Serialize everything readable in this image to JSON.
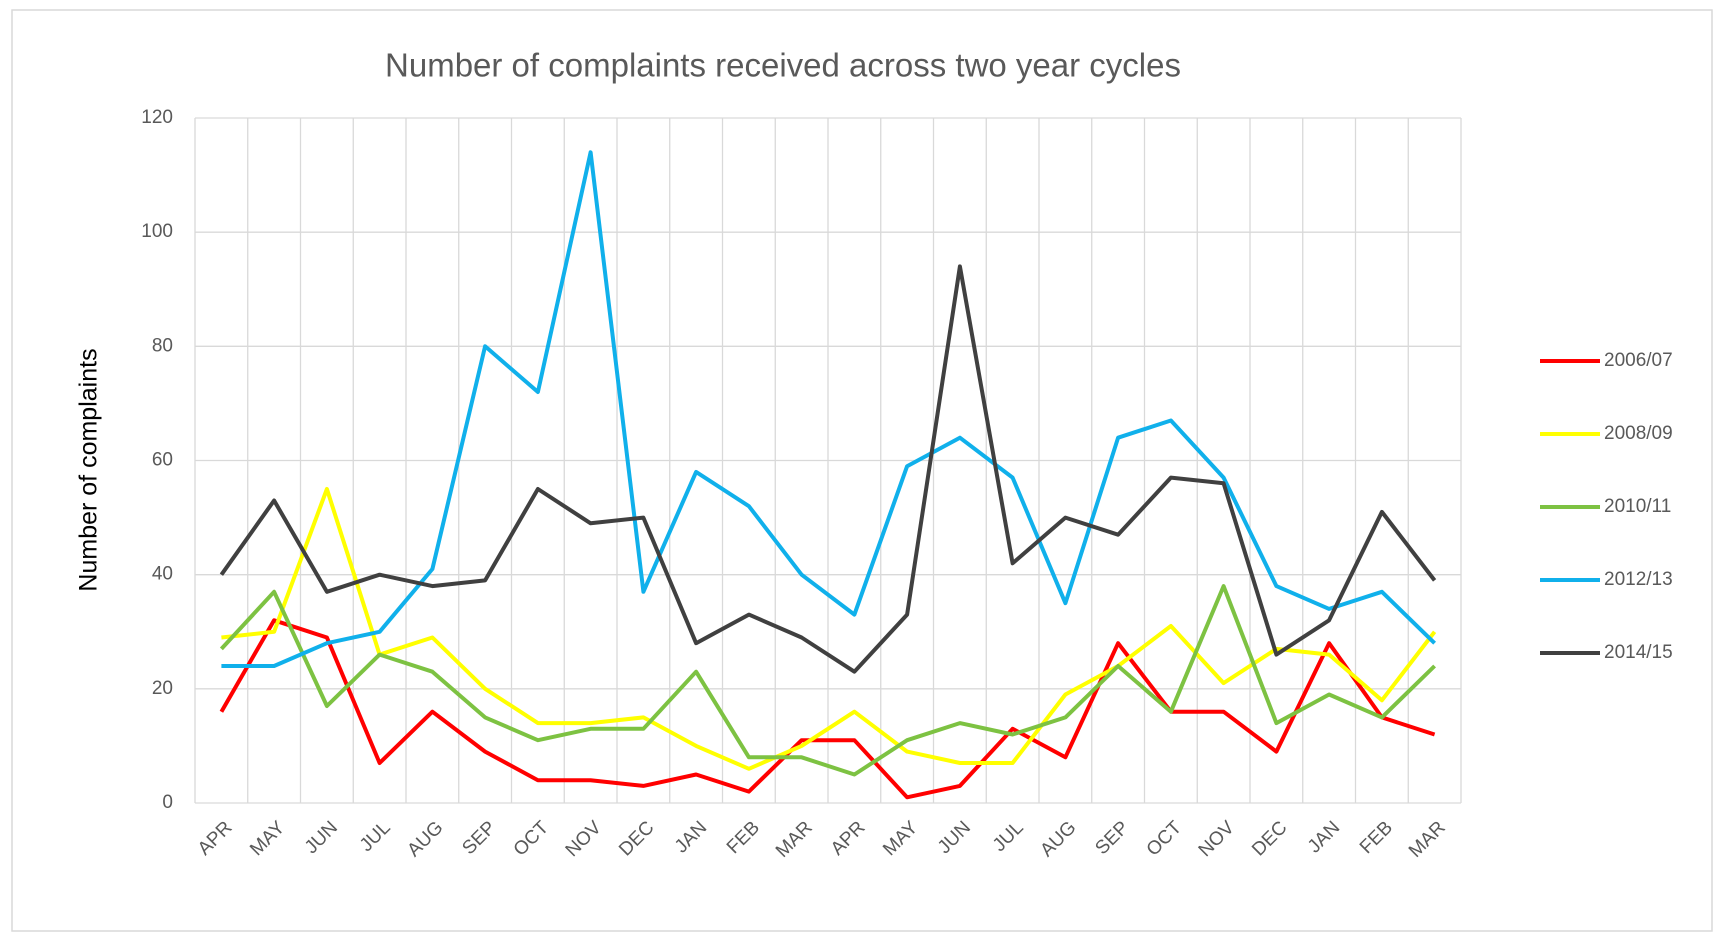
{
  "chart_data": {
    "type": "line",
    "title": "Number of complaints received across two year cycles",
    "y_label": "Number of complaints",
    "categories": [
      "APR",
      "MAY",
      "JUN",
      "JUL",
      "AUG",
      "SEP",
      "OCT",
      "NOV",
      "DEC",
      "JAN",
      "FEB",
      "MAR",
      "APR",
      "MAY",
      "JUN",
      "JUL",
      "AUG",
      "SEP",
      "OCT",
      "NOV",
      "DEC",
      "JAN",
      "FEB",
      "MAR"
    ],
    "series": [
      {
        "name": "2006/07",
        "color": "#ff0000",
        "values": [
          16,
          32,
          29,
          7,
          16,
          9,
          4,
          4,
          3,
          5,
          2,
          11,
          11,
          1,
          3,
          13,
          8,
          28,
          16,
          16,
          9,
          28,
          15,
          12
        ]
      },
      {
        "name": "2008/09",
        "color": "#ffff00",
        "values": [
          29,
          30,
          55,
          26,
          29,
          20,
          14,
          14,
          15,
          10,
          6,
          10,
          16,
          9,
          7,
          7,
          19,
          24,
          31,
          21,
          27,
          26,
          18,
          30
        ]
      },
      {
        "name": "2010/11",
        "color": "#7dc242",
        "values": [
          27,
          37,
          17,
          26,
          23,
          15,
          11,
          13,
          13,
          23,
          8,
          8,
          5,
          11,
          14,
          12,
          15,
          24,
          16,
          38,
          14,
          19,
          15,
          24
        ]
      },
      {
        "name": "2012/13",
        "color": "#10b0eb",
        "values": [
          24,
          24,
          28,
          30,
          41,
          80,
          72,
          114,
          37,
          58,
          52,
          40,
          33,
          59,
          64,
          57,
          35,
          64,
          67,
          57,
          38,
          34,
          37,
          28
        ]
      },
      {
        "name": "2014/15",
        "color": "#404040",
        "values": [
          40,
          53,
          37,
          40,
          38,
          39,
          55,
          49,
          50,
          28,
          33,
          29,
          23,
          33,
          94,
          42,
          50,
          47,
          57,
          56,
          26,
          32,
          51,
          39
        ]
      }
    ],
    "ylim": [
      0,
      120
    ],
    "yticks": [
      0,
      20,
      40,
      60,
      80,
      100,
      120
    ],
    "grid": true,
    "legend": "right"
  }
}
